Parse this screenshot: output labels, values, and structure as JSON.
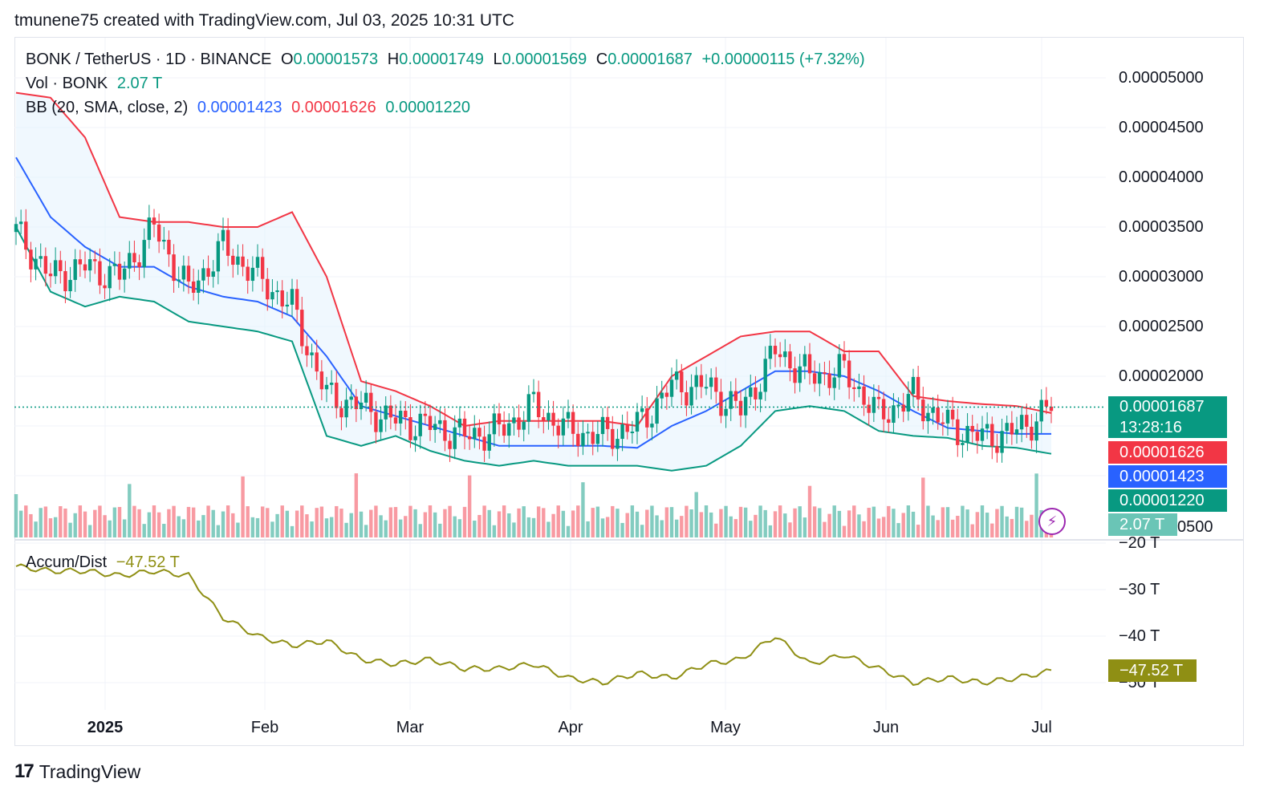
{
  "credit": "tmunene75 created with TradingView.com, Jul 03, 2025 10:31 UTC",
  "legend": {
    "symbol": "BONK / TetherUS · 1D · BINANCE",
    "o_label": "O",
    "o_value": "0.00001573",
    "h_label": "H",
    "h_value": "0.00001749",
    "l_label": "L",
    "l_value": "0.00001569",
    "c_label": "C",
    "c_value": "0.00001687",
    "change": "+0.00000115 (+7.32%)",
    "vol_label": "Vol · BONK",
    "vol_value": "2.07 T",
    "bb_label": "BB (20, SMA, close, 2)",
    "bb_basis": "0.00001423",
    "bb_upper": "0.00001626",
    "bb_lower": "0.00001220",
    "ad_label": "Accum/Dist",
    "ad_value": "−47.52 T"
  },
  "tags": {
    "price": "0.00001687",
    "countdown": "13:28:16",
    "upper": "0.00001626",
    "basis": "0.00001423",
    "lower": "0.00001220",
    "volume": "2.07 T",
    "ad": "−47.52 T"
  },
  "price_axis": [
    "0.00005000",
    "0.00004500",
    "0.00004000",
    "0.00003500",
    "0.00003000",
    "0.00002500",
    "0.00002000"
  ],
  "price_axis_partial": "0500",
  "ad_axis": [
    "−20 T",
    "−30 T",
    "−40 T",
    "−50 T"
  ],
  "x_axis": [
    "2025",
    "Feb",
    "Mar",
    "Apr",
    "May",
    "Jun",
    "Jul"
  ],
  "footer": {
    "brand": "TradingView",
    "logo": "17"
  },
  "colors": {
    "up": "#089981",
    "down": "#f23645",
    "basis": "#2962ff",
    "upper": "#f23645",
    "lower": "#089981",
    "ad": "#8f8f14",
    "band_fill": "#e3f2fd"
  },
  "chart_data": [
    {
      "type": "line",
      "title": "BONK / TetherUS · 1D · BINANCE",
      "ylim": [
        1e-05,
        5.3e-05
      ],
      "x": [
        "2024-12-08",
        "2024-12-15",
        "2024-12-22",
        "2024-12-29",
        "2025-01-05",
        "2025-01-12",
        "2025-01-19",
        "2025-01-26",
        "2025-02-02",
        "2025-02-09",
        "2025-02-16",
        "2025-02-23",
        "2025-03-02",
        "2025-03-09",
        "2025-03-16",
        "2025-03-23",
        "2025-03-30",
        "2025-04-06",
        "2025-04-13",
        "2025-04-20",
        "2025-04-27",
        "2025-05-04",
        "2025-05-11",
        "2025-05-18",
        "2025-05-25",
        "2025-06-01",
        "2025-06-08",
        "2025-06-15",
        "2025-06-22",
        "2025-06-29",
        "2025-07-03"
      ],
      "series": [
        {
          "name": "close",
          "values": [
            3.45e-05,
            3e-05,
            3.1e-05,
            3e-05,
            3.5e-05,
            2.85e-05,
            3.3e-05,
            3e-05,
            2.7e-05,
            1.8e-05,
            1.7e-05,
            1.55e-05,
            1.5e-05,
            1.4e-05,
            1.45e-05,
            1.7e-05,
            1.45e-05,
            1.4e-05,
            1.5e-05,
            1.9e-05,
            1.9e-05,
            1.65e-05,
            2.25e-05,
            2e-05,
            2.05e-05,
            1.6e-05,
            1.8e-05,
            1.5e-05,
            1.38e-05,
            1.45e-05,
            1.69e-05
          ]
        },
        {
          "name": "upper",
          "values": [
            4.85e-05,
            4.8e-05,
            4.4e-05,
            3.6e-05,
            3.55e-05,
            3.55e-05,
            3.5e-05,
            3.5e-05,
            3.65e-05,
            3e-05,
            1.95e-05,
            1.85e-05,
            1.7e-05,
            1.5e-05,
            1.55e-05,
            1.55e-05,
            1.55e-05,
            1.55e-05,
            1.5e-05,
            2e-05,
            2.2e-05,
            2.4e-05,
            2.45e-05,
            2.45e-05,
            2.25e-05,
            2.25e-05,
            1.8e-05,
            1.75e-05,
            1.72e-05,
            1.7e-05,
            1.63e-05
          ]
        },
        {
          "name": "basis",
          "values": [
            4.2e-05,
            3.6e-05,
            3.3e-05,
            3.1e-05,
            3.1e-05,
            2.9e-05,
            2.8e-05,
            2.75e-05,
            2.6e-05,
            2.2e-05,
            1.7e-05,
            1.6e-05,
            1.5e-05,
            1.4e-05,
            1.3e-05,
            1.3e-05,
            1.3e-05,
            1.3e-05,
            1.28e-05,
            1.5e-05,
            1.65e-05,
            1.85e-05,
            2.05e-05,
            2.05e-05,
            2e-05,
            1.85e-05,
            1.65e-05,
            1.48e-05,
            1.45e-05,
            1.42e-05,
            1.42e-05
          ]
        },
        {
          "name": "lower",
          "values": [
            3.5e-05,
            2.85e-05,
            2.7e-05,
            2.8e-05,
            2.75e-05,
            2.55e-05,
            2.5e-05,
            2.45e-05,
            2.35e-05,
            1.4e-05,
            1.3e-05,
            1.4e-05,
            1.25e-05,
            1.15e-05,
            1.1e-05,
            1.15e-05,
            1.1e-05,
            1.1e-05,
            1.1e-05,
            1.05e-05,
            1.1e-05,
            1.3e-05,
            1.65e-05,
            1.7e-05,
            1.65e-05,
            1.45e-05,
            1.4e-05,
            1.38e-05,
            1.3e-05,
            1.28e-05,
            1.22e-05
          ]
        }
      ]
    },
    {
      "type": "line",
      "title": "Accum/Dist",
      "ylim": [
        -53,
        -17
      ],
      "x": [
        "2024-12-08",
        "2024-12-15",
        "2024-12-22",
        "2024-12-29",
        "2025-01-05",
        "2025-01-12",
        "2025-01-19",
        "2025-01-26",
        "2025-02-02",
        "2025-02-09",
        "2025-02-16",
        "2025-02-23",
        "2025-03-02",
        "2025-03-09",
        "2025-03-16",
        "2025-03-23",
        "2025-03-30",
        "2025-04-06",
        "2025-04-13",
        "2025-04-20",
        "2025-04-27",
        "2025-05-04",
        "2025-05-11",
        "2025-05-18",
        "2025-05-25",
        "2025-06-01",
        "2025-06-08",
        "2025-06-15",
        "2025-06-22",
        "2025-06-29",
        "2025-07-03"
      ],
      "series": [
        {
          "name": "Accum/Dist",
          "values": [
            -25,
            -26,
            -26,
            -27,
            -26,
            -27,
            -36,
            -40,
            -42,
            -41,
            -45,
            -46,
            -45,
            -47,
            -47,
            -46,
            -49,
            -50,
            -48,
            -49,
            -46,
            -45,
            -40,
            -46,
            -44,
            -47,
            -50,
            -49,
            -50,
            -49,
            -47.5
          ]
        }
      ]
    }
  ]
}
